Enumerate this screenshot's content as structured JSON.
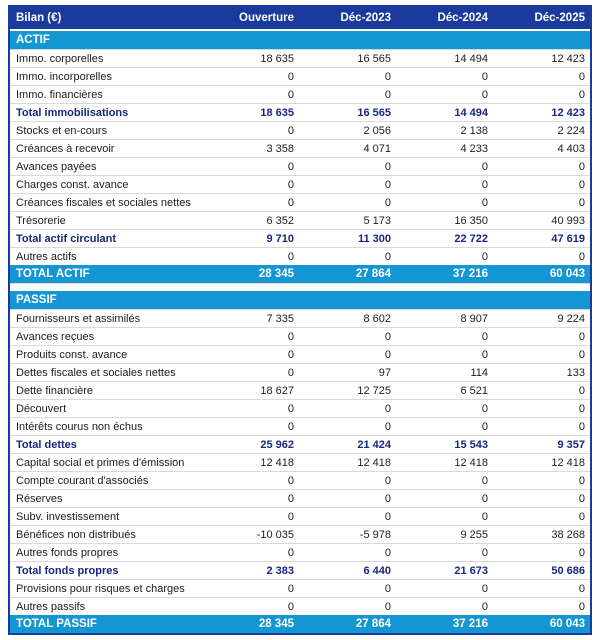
{
  "colors": {
    "header_navy": "#1a3a9e",
    "accent_cyan": "#1496d2",
    "subtotal_text_navy": "#17277f"
  },
  "table": {
    "title": "Bilan (€)",
    "columns": [
      "Ouverture",
      "Déc-2023",
      "Déc-2024",
      "Déc-2025"
    ],
    "sections": [
      {
        "name": "ACTIF",
        "rows": [
          {
            "label": "Immo. corporelles",
            "values": [
              "18 635",
              "16 565",
              "14 494",
              "12 423"
            ],
            "bold": false
          },
          {
            "label": "Immo. incorporelles",
            "values": [
              "0",
              "0",
              "0",
              "0"
            ],
            "bold": false
          },
          {
            "label": "Immo. financières",
            "values": [
              "0",
              "0",
              "0",
              "0"
            ],
            "bold": false
          },
          {
            "label": "Total immobilisations",
            "values": [
              "18 635",
              "16 565",
              "14 494",
              "12 423"
            ],
            "bold": true
          },
          {
            "label": "Stocks et en-cours",
            "values": [
              "0",
              "2 056",
              "2 138",
              "2 224"
            ],
            "bold": false
          },
          {
            "label": "Créances à recevoir",
            "values": [
              "3 358",
              "4 071",
              "4 233",
              "4 403"
            ],
            "bold": false
          },
          {
            "label": "Avances payées",
            "values": [
              "0",
              "0",
              "0",
              "0"
            ],
            "bold": false
          },
          {
            "label": "Charges const. avance",
            "values": [
              "0",
              "0",
              "0",
              "0"
            ],
            "bold": false
          },
          {
            "label": "Créances fiscales et sociales nettes",
            "values": [
              "0",
              "0",
              "0",
              "0"
            ],
            "bold": false
          },
          {
            "label": "Trésorerie",
            "values": [
              "6 352",
              "5 173",
              "16 350",
              "40 993"
            ],
            "bold": false
          },
          {
            "label": "Total actif circulant",
            "values": [
              "9 710",
              "11 300",
              "22 722",
              "47 619"
            ],
            "bold": true
          },
          {
            "label": "Autres actifs",
            "values": [
              "0",
              "0",
              "0",
              "0"
            ],
            "bold": false
          }
        ],
        "total": {
          "label": "TOTAL ACTIF",
          "values": [
            "28 345",
            "27 864",
            "37 216",
            "60 043"
          ]
        }
      },
      {
        "name": "PASSIF",
        "rows": [
          {
            "label": "Fournisseurs et assimilés",
            "values": [
              "7 335",
              "8 602",
              "8 907",
              "9 224"
            ],
            "bold": false
          },
          {
            "label": "Avances reçues",
            "values": [
              "0",
              "0",
              "0",
              "0"
            ],
            "bold": false
          },
          {
            "label": "Produits const. avance",
            "values": [
              "0",
              "0",
              "0",
              "0"
            ],
            "bold": false
          },
          {
            "label": "Dettes fiscales et sociales nettes",
            "values": [
              "0",
              "97",
              "114",
              "133"
            ],
            "bold": false
          },
          {
            "label": "Dette financière",
            "values": [
              "18 627",
              "12 725",
              "6 521",
              "0"
            ],
            "bold": false
          },
          {
            "label": "Découvert",
            "values": [
              "0",
              "0",
              "0",
              "0"
            ],
            "bold": false
          },
          {
            "label": "Intérêts courus non échus",
            "values": [
              "0",
              "0",
              "0",
              "0"
            ],
            "bold": false
          },
          {
            "label": "Total dettes",
            "values": [
              "25 962",
              "21 424",
              "15 543",
              "9 357"
            ],
            "bold": true
          },
          {
            "label": "Capital social et primes d'émission",
            "values": [
              "12 418",
              "12 418",
              "12 418",
              "12 418"
            ],
            "bold": false
          },
          {
            "label": "Compte courant d'associés",
            "values": [
              "0",
              "0",
              "0",
              "0"
            ],
            "bold": false
          },
          {
            "label": "Réserves",
            "values": [
              "0",
              "0",
              "0",
              "0"
            ],
            "bold": false
          },
          {
            "label": "Subv. investissement",
            "values": [
              "0",
              "0",
              "0",
              "0"
            ],
            "bold": false
          },
          {
            "label": "Bénéfices non distribués",
            "values": [
              "-10 035",
              "-5 978",
              "9 255",
              "38 268"
            ],
            "bold": false
          },
          {
            "label": "Autres fonds propres",
            "values": [
              "0",
              "0",
              "0",
              "0"
            ],
            "bold": false
          },
          {
            "label": "Total fonds propres",
            "values": [
              "2 383",
              "6 440",
              "21 673",
              "50 686"
            ],
            "bold": true
          },
          {
            "label": "Provisions pour risques et charges",
            "values": [
              "0",
              "0",
              "0",
              "0"
            ],
            "bold": false
          },
          {
            "label": "Autres passifs",
            "values": [
              "0",
              "0",
              "0",
              "0"
            ],
            "bold": false
          }
        ],
        "total": {
          "label": "TOTAL PASSIF",
          "values": [
            "28 345",
            "27 864",
            "37 216",
            "60 043"
          ]
        }
      }
    ]
  }
}
